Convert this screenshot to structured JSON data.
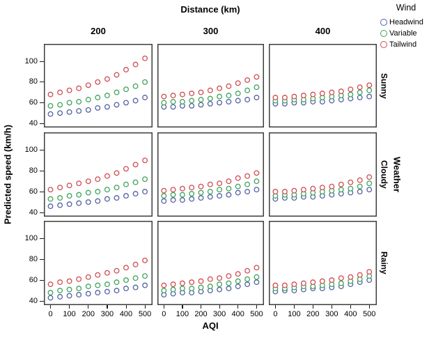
{
  "figure": {
    "top_dimension_title": "Distance (km)",
    "column_labels": [
      "200",
      "300",
      "400"
    ],
    "row_dimension_title": "Weather",
    "row_labels": [
      "Sunny",
      "Cloudy",
      "Rainy"
    ],
    "x_axis_title": "AQI",
    "y_axis_title": "Predicted speed (km/h)",
    "background_color": "#ffffff",
    "panel_border_color": "#3e3e3e"
  },
  "legend": {
    "title": "Wind",
    "entries": [
      {
        "label": "Headwind",
        "color": "#5261a4"
      },
      {
        "label": "Variable",
        "color": "#3fa45b"
      },
      {
        "label": "Tailwind",
        "color": "#d04c50"
      }
    ]
  },
  "chart_data": {
    "type": "scatter",
    "title": "Distance (km)",
    "xlabel": "AQI",
    "ylabel": "Predicted speed (km/h)",
    "marker": "open-circle",
    "grid": false,
    "legend_position": "top-right",
    "x": [
      0,
      50,
      100,
      150,
      200,
      250,
      300,
      350,
      400,
      450,
      500
    ],
    "x_ticks": [
      0,
      100,
      200,
      300,
      400,
      500
    ],
    "y_ticks": [
      40,
      60,
      80,
      100
    ],
    "xlim": [
      -35,
      540
    ],
    "ylim": [
      36,
      117
    ],
    "facet_columns": {
      "title": "Distance (km)",
      "values": [
        "200",
        "300",
        "400"
      ]
    },
    "facet_rows": {
      "title": "Weather",
      "values": [
        "Sunny",
        "Cloudy",
        "Rainy"
      ]
    },
    "facets": [
      {
        "row": "Sunny",
        "col": "200",
        "series": [
          {
            "name": "Headwind",
            "values": [
              49,
              50,
              51,
              52,
              53,
              55,
              56,
              58,
              60,
              62,
              65
            ]
          },
          {
            "name": "Variable",
            "values": [
              57,
              58,
              60,
              61,
              63,
              65,
              67,
              70,
              73,
              76,
              80
            ]
          },
          {
            "name": "Tailwind",
            "values": [
              68,
              70,
              72,
              74,
              77,
              80,
              83,
              87,
              92,
              97,
              103
            ]
          }
        ]
      },
      {
        "row": "Sunny",
        "col": "300",
        "series": [
          {
            "name": "Headwind",
            "values": [
              56,
              56,
              57,
              57,
              58,
              59,
              60,
              61,
              62,
              63,
              65
            ]
          },
          {
            "name": "Variable",
            "values": [
              60,
              61,
              61,
              62,
              63,
              64,
              66,
              67,
              69,
              72,
              75
            ]
          },
          {
            "name": "Tailwind",
            "values": [
              66,
              67,
              68,
              69,
              70,
              72,
              74,
              76,
              79,
              82,
              85
            ]
          }
        ]
      },
      {
        "row": "Sunny",
        "col": "400",
        "series": [
          {
            "name": "Headwind",
            "values": [
              59,
              59,
              60,
              60,
              61,
              61,
              62,
              63,
              64,
              65,
              66
            ]
          },
          {
            "name": "Variable",
            "values": [
              62,
              62,
              63,
              63,
              64,
              65,
              66,
              67,
              68,
              70,
              72
            ]
          },
          {
            "name": "Tailwind",
            "values": [
              65,
              65,
              66,
              67,
              68,
              69,
              70,
              71,
              73,
              75,
              77
            ]
          }
        ]
      },
      {
        "row": "Cloudy",
        "col": "200",
        "series": [
          {
            "name": "Headwind",
            "values": [
              46,
              47,
              48,
              49,
              50,
              51,
              53,
              54,
              56,
              58,
              60
            ]
          },
          {
            "name": "Variable",
            "values": [
              53,
              54,
              56,
              57,
              59,
              60,
              62,
              64,
              67,
              69,
              72
            ]
          },
          {
            "name": "Tailwind",
            "values": [
              62,
              64,
              66,
              68,
              70,
              72,
              75,
              78,
              82,
              86,
              90
            ]
          }
        ]
      },
      {
        "row": "Cloudy",
        "col": "300",
        "series": [
          {
            "name": "Headwind",
            "values": [
              51,
              52,
              52,
              53,
              54,
              55,
              56,
              57,
              59,
              60,
              62
            ]
          },
          {
            "name": "Variable",
            "values": [
              56,
              57,
              57,
              58,
              59,
              60,
              62,
              63,
              65,
              67,
              70
            ]
          },
          {
            "name": "Tailwind",
            "values": [
              61,
              62,
              63,
              64,
              65,
              67,
              68,
              70,
              73,
              75,
              78
            ]
          }
        ]
      },
      {
        "row": "Cloudy",
        "col": "400",
        "series": [
          {
            "name": "Headwind",
            "values": [
              53,
              54,
              54,
              55,
              55,
              56,
              57,
              58,
              59,
              60,
              62
            ]
          },
          {
            "name": "Variable",
            "values": [
              56,
              57,
              57,
              58,
              59,
              60,
              61,
              62,
              63,
              65,
              68
            ]
          },
          {
            "name": "Tailwind",
            "values": [
              60,
              60,
              61,
              62,
              63,
              64,
              65,
              67,
              69,
              71,
              74
            ]
          }
        ]
      },
      {
        "row": "Rainy",
        "col": "200",
        "series": [
          {
            "name": "Headwind",
            "values": [
              43,
              44,
              45,
              46,
              47,
              48,
              49,
              50,
              52,
              53,
              55
            ]
          },
          {
            "name": "Variable",
            "values": [
              48,
              50,
              51,
              52,
              54,
              55,
              56,
              58,
              60,
              62,
              64
            ]
          },
          {
            "name": "Tailwind",
            "values": [
              56,
              58,
              59,
              61,
              63,
              65,
              67,
              69,
              72,
              75,
              79
            ]
          }
        ]
      },
      {
        "row": "Rainy",
        "col": "300",
        "series": [
          {
            "name": "Headwind",
            "values": [
              46,
              47,
              48,
              48,
              49,
              50,
              51,
              52,
              54,
              56,
              58
            ]
          },
          {
            "name": "Variable",
            "values": [
              50,
              51,
              52,
              52,
              53,
              54,
              56,
              57,
              59,
              61,
              63
            ]
          },
          {
            "name": "Tailwind",
            "values": [
              55,
              56,
              57,
              58,
              59,
              61,
              62,
              64,
              66,
              69,
              72
            ]
          }
        ]
      },
      {
        "row": "Rainy",
        "col": "400",
        "series": [
          {
            "name": "Headwind",
            "values": [
              49,
              50,
              50,
              51,
              52,
              52,
              53,
              54,
              56,
              58,
              60
            ]
          },
          {
            "name": "Variable",
            "values": [
              52,
              52,
              53,
              54,
              54,
              55,
              56,
              57,
              59,
              61,
              64
            ]
          },
          {
            "name": "Tailwind",
            "values": [
              55,
              55,
              56,
              57,
              58,
              59,
              60,
              62,
              63,
              65,
              68
            ]
          }
        ]
      }
    ]
  }
}
